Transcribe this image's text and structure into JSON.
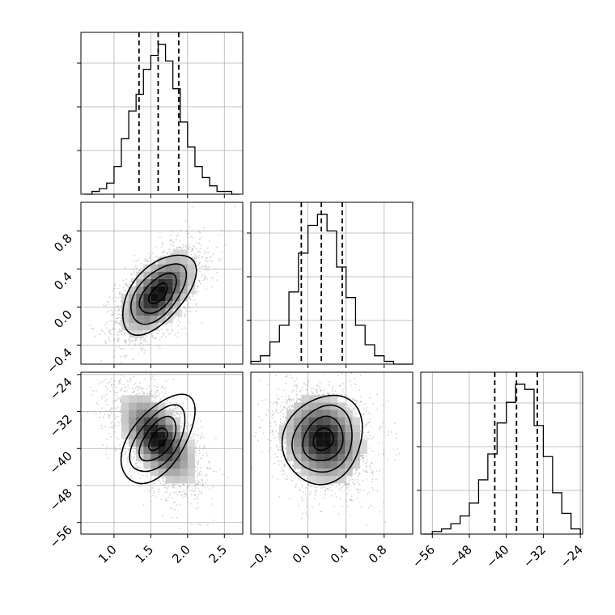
{
  "chart_data": [
    {
      "type": "histogram",
      "panel": "param-1-marginal",
      "x": [
        0.6,
        0.7,
        0.8,
        0.9,
        1.0,
        1.1,
        1.2,
        1.3,
        1.4,
        1.5,
        1.6,
        1.7,
        1.8,
        1.9,
        2.0,
        2.1,
        2.2,
        2.3,
        2.4,
        2.5,
        2.6,
        2.7
      ],
      "counts": [
        0,
        1,
        2,
        4,
        10,
        20,
        30,
        36,
        45,
        50,
        54,
        48,
        38,
        26,
        17,
        10,
        6,
        3,
        1,
        1,
        0
      ],
      "bin_edges": [
        0.6,
        0.7,
        0.8,
        0.9,
        1.0,
        1.1,
        1.2,
        1.3,
        1.4,
        1.5,
        1.6,
        1.7,
        1.8,
        1.9,
        2.0,
        2.1,
        2.2,
        2.3,
        2.4,
        2.5,
        2.6,
        2.7
      ],
      "quantiles": [
        1.34,
        1.6,
        1.88
      ],
      "xlim": [
        0.55,
        2.75
      ],
      "xticks": [
        "1.0",
        "1.5",
        "2.0",
        "2.5"
      ],
      "grid": true
    },
    {
      "type": "histogram",
      "panel": "param-2-marginal",
      "bin_edges": [
        -0.6,
        -0.5,
        -0.4,
        -0.3,
        -0.2,
        -0.1,
        0.0,
        0.1,
        0.2,
        0.3,
        0.4,
        0.5,
        0.6,
        0.7,
        0.8,
        0.9,
        1.0,
        1.1
      ],
      "counts": [
        1,
        3,
        8,
        14,
        26,
        40,
        50,
        54,
        48,
        35,
        24,
        14,
        7,
        3,
        1,
        0,
        0
      ],
      "quantiles": [
        -0.07,
        0.14,
        0.36
      ],
      "xlim": [
        -0.6,
        1.1
      ],
      "xticks": [
        "−0.4",
        "0.0",
        "0.4",
        "0.8"
      ],
      "grid": true
    },
    {
      "type": "histogram",
      "panel": "param-3-marginal",
      "bin_edges": [
        -58,
        -56,
        -54,
        -52,
        -50,
        -48,
        -46,
        -44,
        -42,
        -40,
        -38,
        -36,
        -34,
        -32,
        -30,
        -28,
        -26,
        -24
      ],
      "counts": [
        0,
        1,
        2,
        4,
        7,
        12,
        21,
        31,
        43,
        51,
        58,
        56,
        42,
        30,
        16,
        8,
        2
      ],
      "quantiles": [
        -42.5,
        -37.8,
        -33.3
      ],
      "xlim": [
        -58.5,
        -23.5
      ],
      "xticks": [
        "−56",
        "−48",
        "−40",
        "−32",
        "−24"
      ],
      "grid": true
    },
    {
      "type": "heatmap",
      "panel": "param-1-vs-param-2",
      "center": [
        1.6,
        0.14
      ],
      "xlim": [
        0.55,
        2.75
      ],
      "ylim": [
        -0.6,
        1.1
      ],
      "yticks": [
        "−0.4",
        "0.0",
        "0.4",
        "0.8"
      ],
      "contour_levels": 4,
      "correlation": "positive"
    },
    {
      "type": "heatmap",
      "panel": "param-1-vs-param-3",
      "center": [
        1.6,
        -38.0
      ],
      "xlim": [
        0.55,
        2.75
      ],
      "ylim": [
        -58.5,
        -23.5
      ],
      "xticks": [
        "1.0",
        "1.5",
        "2.0",
        "2.5"
      ],
      "yticks": [
        "−24",
        "−32",
        "−40",
        "−48",
        "−56"
      ],
      "contour_levels": 4,
      "correlation": "negative"
    },
    {
      "type": "heatmap",
      "panel": "param-2-vs-param-3",
      "center": [
        0.16,
        -38.0
      ],
      "xlim": [
        -0.6,
        1.1
      ],
      "ylim": [
        -58.5,
        -23.5
      ],
      "xticks": [
        "−0.4",
        "0.0",
        "0.4",
        "0.8"
      ],
      "contour_levels": 4,
      "correlation": "weak"
    }
  ]
}
